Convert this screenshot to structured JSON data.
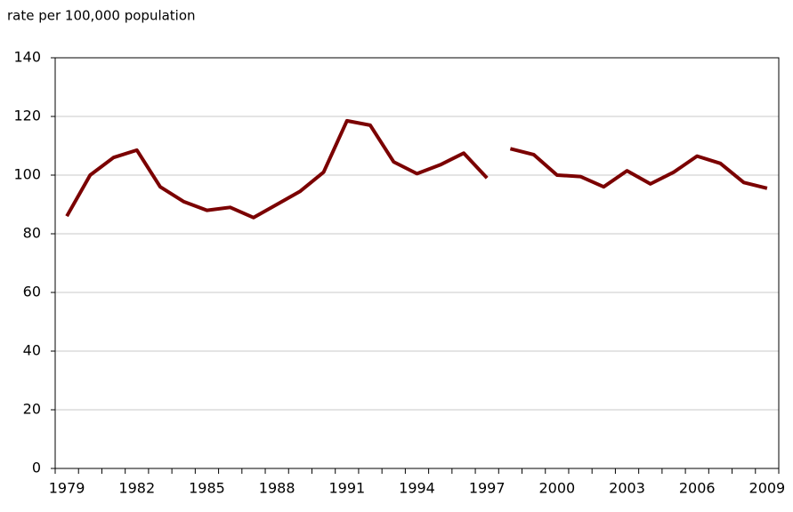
{
  "chart_data": {
    "type": "line",
    "y_axis_label": "rate per 100,000 population",
    "categories": [
      "1979",
      null,
      null,
      "1982",
      null,
      null,
      "1985",
      null,
      null,
      "1988",
      null,
      null,
      "1991",
      null,
      null,
      "1994",
      null,
      null,
      "1997",
      null,
      null,
      "2000",
      null,
      null,
      "2003",
      null,
      null,
      "2006",
      null,
      null,
      "2009"
    ],
    "series": [
      {
        "color": "#7b0000",
        "values": [
          86,
          100,
          106,
          108.5,
          96,
          91,
          88,
          89,
          85.5,
          90,
          94.5,
          101,
          118.5,
          117,
          104.5,
          100.5,
          103.5,
          107.5,
          99,
          null,
          null,
          null,
          null,
          null,
          null,
          null,
          null,
          null,
          null,
          null,
          null
        ]
      },
      {
        "color": "#7b0000",
        "values": [
          null,
          null,
          null,
          null,
          null,
          null,
          null,
          null,
          null,
          null,
          null,
          null,
          null,
          null,
          null,
          null,
          null,
          null,
          null,
          109,
          107,
          100,
          99.5,
          96,
          101.5,
          97,
          101,
          106.5,
          104,
          97.5,
          95.5
        ]
      }
    ],
    "ylim": [
      0,
      140
    ],
    "yticks": [
      0,
      20,
      40,
      60,
      80,
      100,
      120,
      140
    ],
    "grid": true
  }
}
